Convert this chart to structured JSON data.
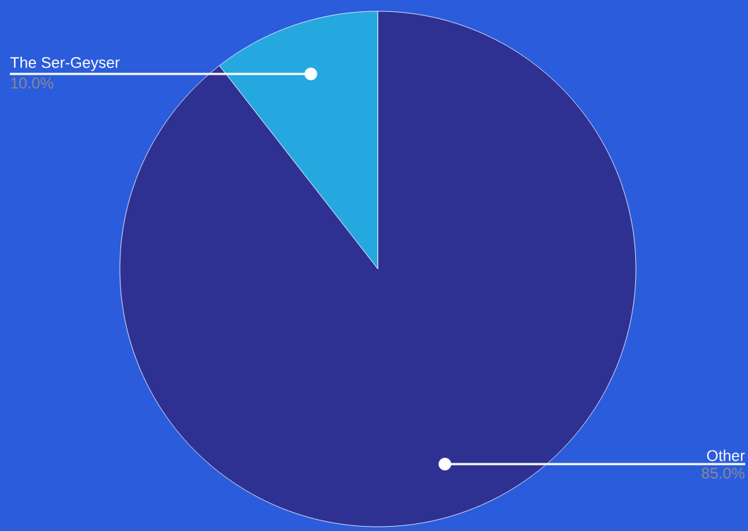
{
  "chart_data": {
    "type": "pie",
    "categories": [
      "The Ser-Geyser",
      "Other"
    ],
    "values": [
      10.0,
      85.0
    ],
    "colors": [
      "#25a8e0",
      "#2e3192"
    ],
    "value_labels": [
      "10.0%",
      "85.0%"
    ]
  }
}
